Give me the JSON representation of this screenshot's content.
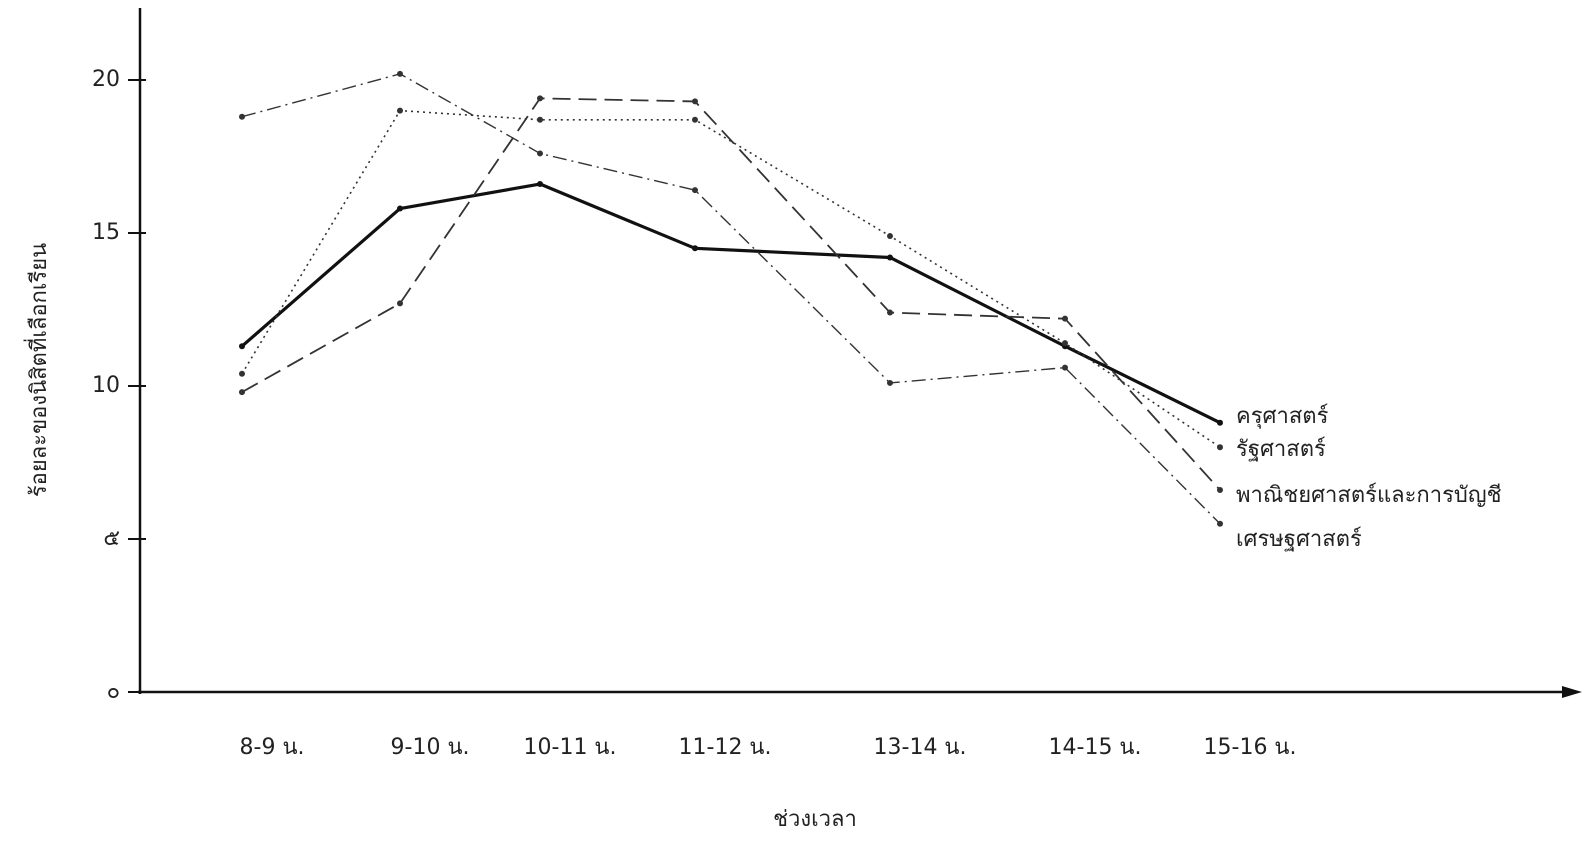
{
  "chart_data": {
    "type": "line",
    "ylabel": "ร้อยละของนิสิตที่เลือกเรียน",
    "xlabel": "ช่วงเวลา",
    "categories": [
      "8-9 น.",
      "9-10 น.",
      "10-11 น.",
      "11-12 น.",
      "13-14 น.",
      "14-15 น.",
      "15-16 น."
    ],
    "ylim": [
      0,
      22.5
    ],
    "yticks": [
      {
        "value": 0,
        "label": "๐"
      },
      {
        "value": 5,
        "label": "๕"
      },
      10,
      15,
      20
    ],
    "series": [
      {
        "name": "ครุศาสตร์",
        "color": "#111111",
        "dash": "solid-bold",
        "values": [
          11.3,
          15.8,
          16.6,
          14.5,
          14.2,
          11.3,
          8.8
        ]
      },
      {
        "name": "รัฐศาสตร์",
        "color": "#333333",
        "dash": "dotted",
        "values": [
          10.4,
          19.0,
          18.7,
          18.7,
          14.9,
          11.4,
          8.0
        ]
      },
      {
        "name": "พาณิชยศาสตร์และการบัญชี",
        "color": "#333333",
        "dash": "dashed",
        "values": [
          9.8,
          12.7,
          19.4,
          19.3,
          12.4,
          12.2,
          6.6
        ]
      },
      {
        "name": "เศรษฐศาสตร์",
        "color": "#333333",
        "dash": "dash-dot",
        "values": [
          18.8,
          20.2,
          17.6,
          16.4,
          10.1,
          10.6,
          5.5
        ]
      }
    ]
  }
}
